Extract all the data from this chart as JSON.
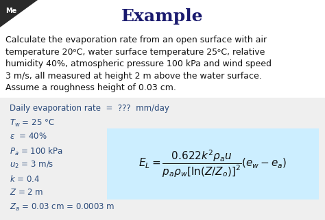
{
  "title": "Example",
  "bg_color": "#f2f2f0",
  "white_area": "#ffffff",
  "box_bg_color": "#cceeff",
  "title_color": "#1a1a6e",
  "text_color": "#111111",
  "given_color": "#2a4a7a",
  "corner_color": "#2a2a2a",
  "problem_text_lines": [
    "Calculate the evaporation rate from an open surface with air",
    "temperature 20ᵒC, water surface temperature 25ᵒC, relative",
    "humidity 40%, atmospheric pressure 100 kPa and wind speed",
    "3 m/s, all measured at height 2 m above the water surface.",
    "Assume a roughness height of 0.03 cm."
  ],
  "given_lines_left": [
    "Daily evaporation rate  =  ???  mm/day",
    "$T_w$ = 25 °C",
    "$\\varepsilon$  = 40%",
    "$P_a$ = 100 kPa",
    "$u_2$ = 3 m/s",
    "$k$ = 0.4",
    "$Z$ = 2 m",
    "$Z_a$ = 0.03 cm = 0.0003 m"
  ]
}
